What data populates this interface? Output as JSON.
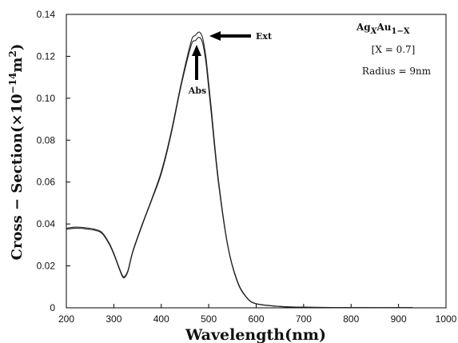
{
  "chart_data": {
    "type": "line",
    "xlabel": "Wavelength(nm)",
    "ylabel": "Cross − Section(×10",
    "ylabel_exp": "−14",
    "ylabel_unit": "m",
    "ylabel_unit_exp": "2",
    "ylabel_close": ")",
    "xlim": [
      200,
      1000
    ],
    "ylim": [
      0,
      0.14
    ],
    "x_ticks": [
      200,
      300,
      400,
      500,
      600,
      700,
      800,
      900,
      1000
    ],
    "y_ticks": [
      "0",
      "0.02",
      "0.04",
      "0.06",
      "0.08",
      "0.10",
      "0.12",
      "0.14"
    ],
    "y_tick_values": [
      0,
      0.02,
      0.04,
      0.06,
      0.08,
      0.1,
      0.12,
      0.14
    ],
    "grid": false,
    "series": [
      {
        "name": "Ext",
        "x": [
          200,
          220,
          240,
          260,
          275,
          290,
          300,
          310,
          318,
          323,
          330,
          340,
          360,
          380,
          400,
          420,
          440,
          455,
          465,
          472,
          478,
          483,
          488,
          495,
          505,
          520,
          540,
          560,
          580,
          600,
          650,
          700,
          800,
          930
        ],
        "y": [
          0.038,
          0.0385,
          0.0382,
          0.0375,
          0.036,
          0.031,
          0.026,
          0.02,
          0.0155,
          0.015,
          0.018,
          0.027,
          0.04,
          0.052,
          0.065,
          0.083,
          0.105,
          0.12,
          0.1285,
          0.13,
          0.1315,
          0.131,
          0.128,
          0.118,
          0.096,
          0.062,
          0.03,
          0.013,
          0.005,
          0.002,
          0.0007,
          0.0003,
          0.0001,
          0.0001
        ]
      },
      {
        "name": "Abs",
        "x": [
          200,
          220,
          240,
          260,
          275,
          290,
          300,
          310,
          318,
          323,
          330,
          340,
          360,
          380,
          400,
          420,
          440,
          455,
          465,
          472,
          478,
          483,
          488,
          495,
          505,
          520,
          540,
          560,
          580,
          600,
          650,
          700,
          800,
          930
        ],
        "y": [
          0.0375,
          0.038,
          0.0377,
          0.037,
          0.0355,
          0.0305,
          0.0255,
          0.0195,
          0.015,
          0.0145,
          0.0175,
          0.0265,
          0.0395,
          0.0515,
          0.064,
          0.082,
          0.104,
          0.1185,
          0.1265,
          0.1275,
          0.129,
          0.1285,
          0.1255,
          0.1155,
          0.0935,
          0.0605,
          0.0295,
          0.0125,
          0.0048,
          0.0019,
          0.0006,
          0.0003,
          0.0001,
          0.0001
        ]
      }
    ],
    "annotations": {
      "ext_label": "Ext",
      "abs_label": "Abs",
      "formula_base": "Ag",
      "formula_sub1": "X",
      "formula_mid": "Au",
      "formula_sub2": "1−X",
      "composition": "[X = 0.7]",
      "radius": "Radius = 9nm"
    }
  }
}
